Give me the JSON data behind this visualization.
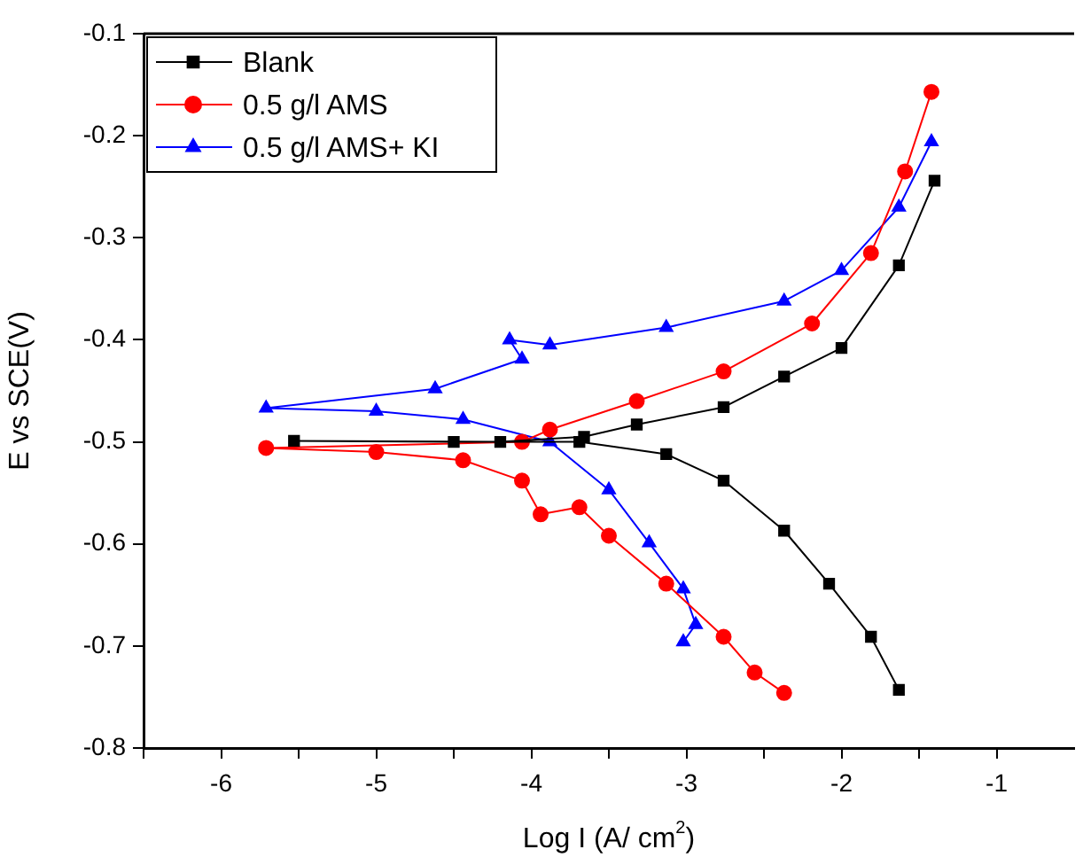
{
  "chart_data": {
    "type": "line",
    "xlabel": "Log I (A/ cm$^{2}$)",
    "ylabel": "E vs SCE(V)",
    "xlim": [
      -6.5,
      -0.5
    ],
    "ylim": [
      -0.8,
      -0.1
    ],
    "xticks": [
      {
        "value": -6.5,
        "label": null
      },
      -6,
      {
        "value": -5.5,
        "label": null
      },
      -5,
      {
        "value": -4.5,
        "label": null
      },
      -4,
      {
        "value": -3.5,
        "label": null
      },
      -3,
      {
        "value": -2.5,
        "label": null
      },
      -2,
      {
        "value": -1.5,
        "label": null
      },
      -1
    ],
    "yticks": [
      -0.8,
      -0.7,
      -0.6,
      -0.5,
      -0.4,
      -0.3,
      -0.2,
      -0.1
    ],
    "grid": false,
    "legend": "top left",
    "series": [
      {
        "name": "Blank",
        "color": "#000000",
        "marker": "square",
        "x": [
          -1.63,
          -1.81,
          -2.08,
          -2.37,
          -2.76,
          -3.13,
          -3.69,
          -4.5,
          -5.53,
          -4.2,
          -3.66,
          -3.32,
          -2.76,
          -2.37,
          -2.0,
          -1.63,
          -1.4
        ],
        "values": [
          -0.743,
          -0.691,
          -0.639,
          -0.587,
          -0.538,
          -0.512,
          -0.5,
          -0.5,
          -0.499,
          -0.5,
          -0.495,
          -0.483,
          -0.466,
          -0.436,
          -0.408,
          -0.327,
          -0.244
        ]
      },
      {
        "name": "0.5 g/l AMS",
        "color": "#ff0000",
        "marker": "circle",
        "x": [
          -2.37,
          -2.56,
          -2.76,
          -3.13,
          -3.5,
          -3.69,
          -3.94,
          -4.06,
          -4.44,
          -5.0,
          -5.71,
          -4.06,
          -3.88,
          -3.32,
          -2.76,
          -2.19,
          -1.81,
          -1.59,
          -1.42
        ],
        "values": [
          -0.746,
          -0.726,
          -0.691,
          -0.639,
          -0.592,
          -0.564,
          -0.571,
          -0.538,
          -0.518,
          -0.51,
          -0.506,
          -0.5,
          -0.488,
          -0.46,
          -0.431,
          -0.384,
          -0.315,
          -0.235,
          -0.157
        ]
      },
      {
        "name": "0.5 g/l AMS+ KI",
        "color": "#0000ff",
        "marker": "triangle",
        "x": [
          -3.02,
          -2.94,
          -3.02,
          -3.24,
          -3.5,
          -3.88,
          -4.44,
          -5.0,
          -5.71,
          -4.62,
          -4.06,
          -4.14,
          -3.88,
          -3.13,
          -2.37,
          -2.0,
          -1.63,
          -1.42
        ],
        "values": [
          -0.696,
          -0.679,
          -0.644,
          -0.599,
          -0.547,
          -0.5,
          -0.478,
          -0.47,
          -0.467,
          -0.448,
          -0.419,
          -0.4,
          -0.405,
          -0.388,
          -0.362,
          -0.332,
          -0.27,
          -0.206
        ]
      }
    ]
  }
}
